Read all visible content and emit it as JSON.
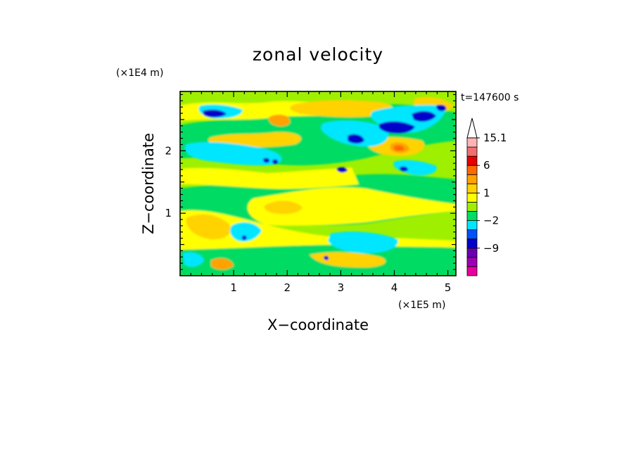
{
  "chart_data": {
    "type": "heatmap",
    "title": "zonal velocity",
    "xlabel": "X−coordinate",
    "ylabel": "Z−coordinate",
    "x_scale_label": "(×1E5 m)",
    "y_scale_label": "(×1E4 m)",
    "time_label": "t=147600 s",
    "xlim": [
      0,
      5.15
    ],
    "ylim": [
      0,
      2.95
    ],
    "x_ticks": [
      1,
      2,
      3,
      4,
      5
    ],
    "x_tick_labels": [
      "1",
      "2",
      "3",
      "4",
      "5"
    ],
    "y_ticks": [
      1,
      2
    ],
    "y_tick_labels": [
      "1",
      "2"
    ],
    "colorbar": {
      "colors": [
        "#e8009c",
        "#a000b4",
        "#6c00b0",
        "#0000c8",
        "#0050ff",
        "#00e6ff",
        "#00dc64",
        "#9ef000",
        "#ffff00",
        "#ffd200",
        "#ffa200",
        "#ff6a00",
        "#e60000",
        "#f07070",
        "#ffb4b4"
      ],
      "labels": [
        {
          "value": "15.1",
          "level_index": 15
        },
        {
          "value": "6",
          "level_index": 12
        },
        {
          "value": "1",
          "level_index": 9
        },
        {
          "value": "−2",
          "level_index": 6
        },
        {
          "value": "−9",
          "level_index": 3
        }
      ]
    }
  }
}
